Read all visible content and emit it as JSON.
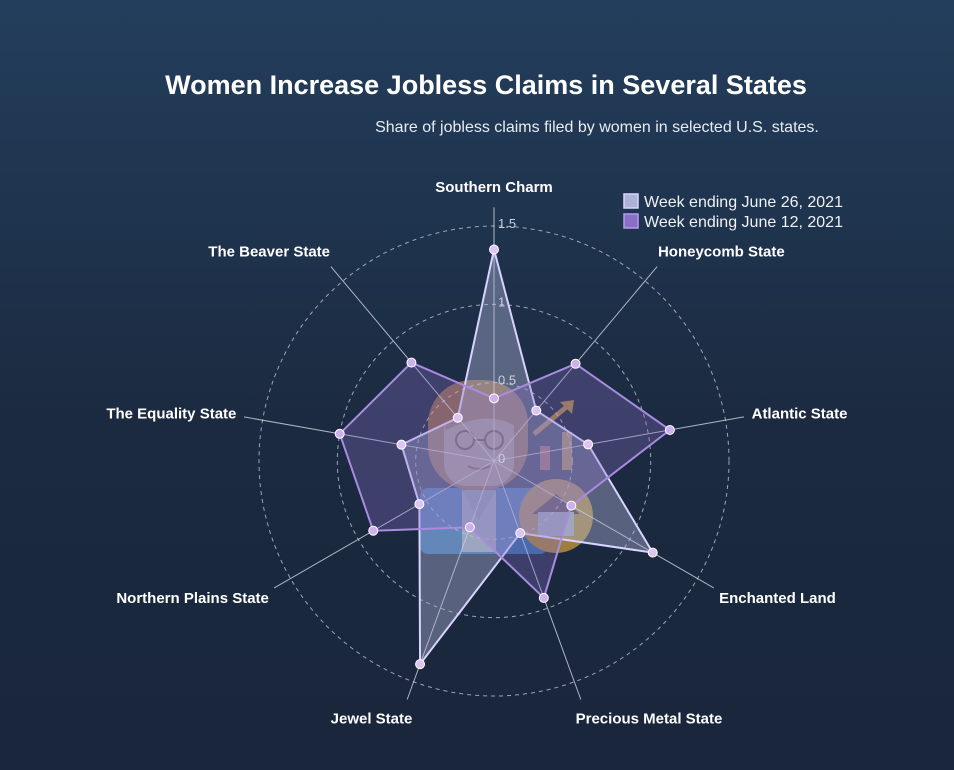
{
  "chart_data": {
    "type": "radar",
    "title": "Women Increase Jobless Claims in Several States",
    "subtitle": "Share of jobless claims filed by women in selected U.S. states.",
    "categories": [
      "Southern Charm",
      "Honeycomb State",
      "Atlantic State",
      "Enchanted Land",
      "Precious Metal State",
      "Jewel State",
      "Northern Plains State",
      "The Equality State",
      "The Beaver State"
    ],
    "rlim": [
      0,
      1.5
    ],
    "ticks": [
      0,
      0.5,
      1,
      1.5
    ],
    "tick_labels": [
      "0",
      "0.5",
      "1",
      "1.5"
    ],
    "grid": true,
    "legend_position": "top-right",
    "series": [
      {
        "name": "Week ending June 26, 2021",
        "values": [
          1.35,
          0.42,
          0.61,
          1.17,
          0.49,
          1.38,
          0.55,
          0.6,
          0.36
        ],
        "color": "#d9d3ff",
        "fill": "#aeb2d6"
      },
      {
        "name": "Week ending June 12, 2021",
        "values": [
          0.4,
          0.81,
          1.14,
          0.57,
          0.93,
          0.45,
          0.89,
          1.0,
          0.82
        ],
        "color": "#a98be0",
        "fill": "#8a6fc6"
      }
    ]
  },
  "icon": "woman-with-house-and-chart-icon"
}
